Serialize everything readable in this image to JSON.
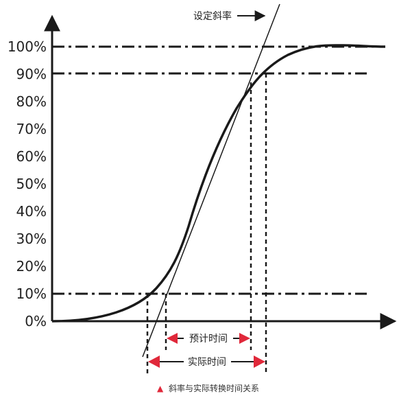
{
  "y_ticks": [
    "0%",
    "10%",
    "20%",
    "30%",
    "40%",
    "50%",
    "60%",
    "70%",
    "80%",
    "90%",
    "100%"
  ],
  "labels": {
    "set_slope": "设定斜率",
    "expected_time": "预计时间",
    "actual_time": "实际时间"
  },
  "caption": {
    "marker": "▲",
    "text": "斜率与实际转换时间关系"
  },
  "colors": {
    "line": "#1a1a1a",
    "arrow_red": "#e0283a",
    "caption_marker": "#e0283a"
  }
}
